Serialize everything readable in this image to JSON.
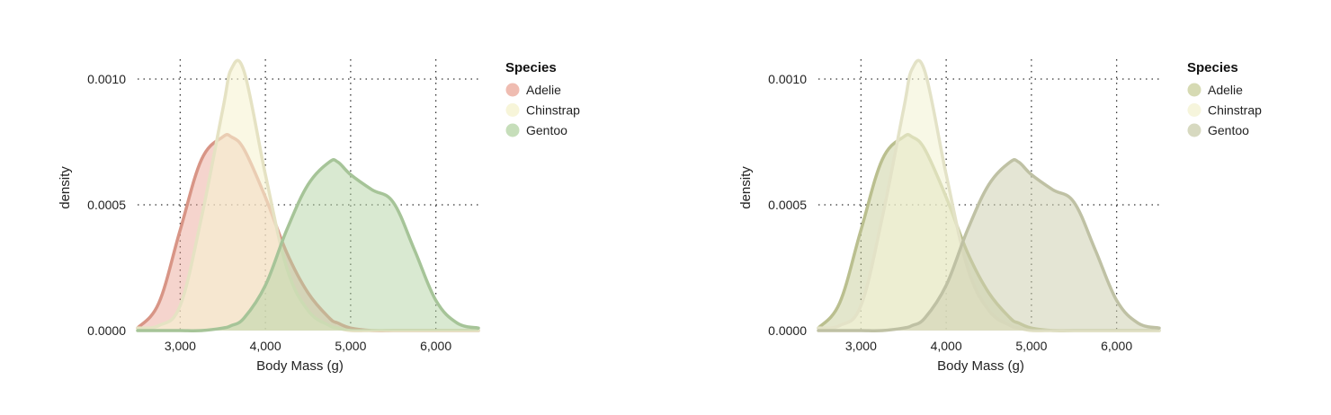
{
  "chart_data": [
    {
      "type": "area",
      "kind": "density",
      "xlabel": "Body Mass (g)",
      "ylabel": "density",
      "xlim": [
        2500,
        6500
      ],
      "ylim": [
        0,
        0.0011
      ],
      "x_ticks": [
        3000,
        4000,
        5000,
        6000
      ],
      "x_tick_labels": [
        "3,000",
        "4,000",
        "5,000",
        "6,000"
      ],
      "y_ticks": [
        0,
        0.0005,
        0.001
      ],
      "y_tick_labels": [
        "0.0000",
        "0.0005",
        "0.0010"
      ],
      "grid": true,
      "legend": {
        "title": "Species",
        "position": "right"
      },
      "x": [
        2500,
        2750,
        3000,
        3250,
        3500,
        3600,
        3750,
        4000,
        4250,
        4500,
        4750,
        4850,
        5000,
        5250,
        5500,
        5750,
        6000,
        6250,
        6500
      ],
      "series": [
        {
          "name": "Adelie",
          "color": "#e8a090",
          "fill_opacity": 0.45,
          "values": [
            1e-05,
            0.00011,
            0.0004,
            0.00068,
            0.00077,
            0.00077,
            0.00072,
            0.00053,
            0.00031,
            0.00015,
            5e-05,
            3e-05,
            1e-05,
            0,
            0,
            0,
            0,
            0,
            0
          ]
        },
        {
          "name": "Chinstrap",
          "color": "#f6f3d2",
          "fill_opacity": 0.6,
          "values": [
            1e-05,
            2e-05,
            0.0001,
            0.00045,
            0.00088,
            0.00104,
            0.00103,
            0.00062,
            0.00025,
            8e-05,
            2e-05,
            1e-05,
            0,
            0,
            0,
            0,
            0,
            0,
            0
          ]
        },
        {
          "name": "Gentoo",
          "color": "#b3d3a3",
          "fill_opacity": 0.5,
          "values": [
            0,
            0,
            0,
            0,
            1e-05,
            2e-05,
            5e-05,
            0.00018,
            0.0004,
            0.00058,
            0.00067,
            0.00067,
            0.00062,
            0.00056,
            0.00051,
            0.00032,
            0.00012,
            3e-05,
            1e-05
          ]
        }
      ]
    },
    {
      "type": "area",
      "kind": "density",
      "xlabel": "Body Mass (g)",
      "ylabel": "density",
      "xlim": [
        2500,
        6500
      ],
      "ylim": [
        0,
        0.0011
      ],
      "x_ticks": [
        3000,
        4000,
        5000,
        6000
      ],
      "x_tick_labels": [
        "3,000",
        "4,000",
        "5,000",
        "6,000"
      ],
      "y_ticks": [
        0,
        0.0005,
        0.001
      ],
      "y_tick_labels": [
        "0.0000",
        "0.0005",
        "0.0010"
      ],
      "grid": true,
      "legend": {
        "title": "Species",
        "position": "right"
      },
      "x": [
        2500,
        2750,
        3000,
        3250,
        3500,
        3600,
        3750,
        4000,
        4250,
        4500,
        4750,
        4850,
        5000,
        5250,
        5500,
        5750,
        6000,
        6250,
        6500
      ],
      "series": [
        {
          "name": "Adelie",
          "color": "#c8cd9a",
          "fill_opacity": 0.5,
          "values": [
            1e-05,
            0.00011,
            0.0004,
            0.00068,
            0.00077,
            0.00077,
            0.00072,
            0.00053,
            0.00031,
            0.00015,
            5e-05,
            3e-05,
            1e-05,
            0,
            0,
            0,
            0,
            0,
            0
          ]
        },
        {
          "name": "Chinstrap",
          "color": "#f4f3d6",
          "fill_opacity": 0.6,
          "values": [
            1e-05,
            2e-05,
            0.0001,
            0.00045,
            0.00088,
            0.00104,
            0.00103,
            0.00062,
            0.00025,
            8e-05,
            2e-05,
            1e-05,
            0,
            0,
            0,
            0,
            0,
            0,
            0
          ]
        },
        {
          "name": "Gentoo",
          "color": "#cdcfb0",
          "fill_opacity": 0.55,
          "values": [
            0,
            0,
            0,
            0,
            1e-05,
            2e-05,
            5e-05,
            0.00018,
            0.0004,
            0.00058,
            0.00067,
            0.00067,
            0.00062,
            0.00056,
            0.00051,
            0.00032,
            0.00012,
            3e-05,
            1e-05
          ]
        }
      ]
    }
  ]
}
